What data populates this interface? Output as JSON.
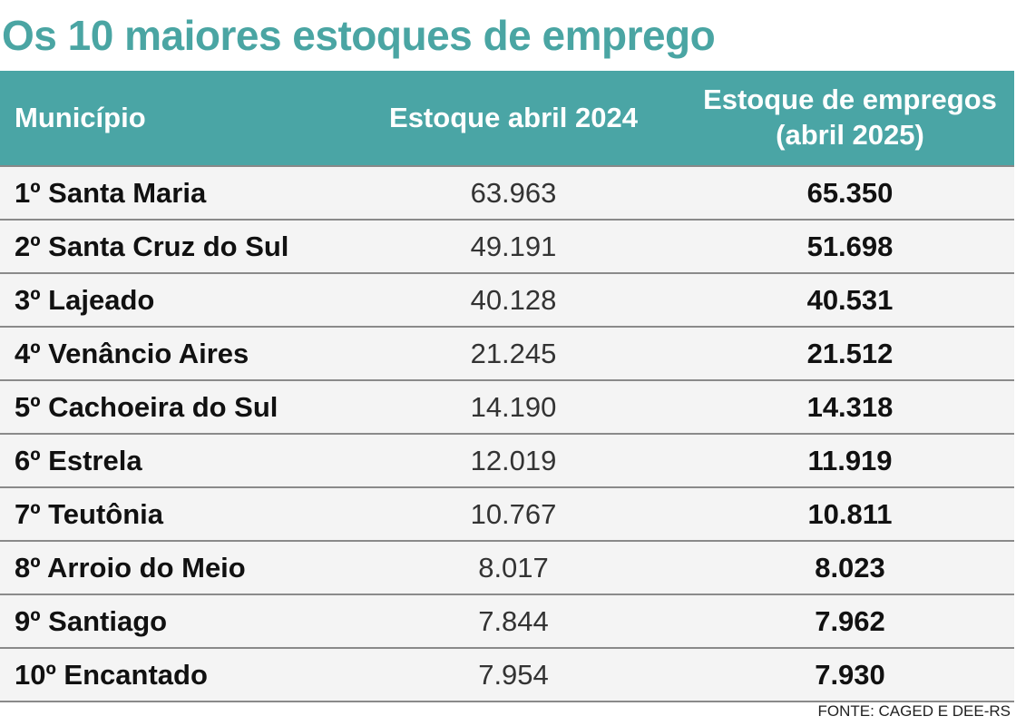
{
  "chart_data": {
    "type": "table",
    "title": "Os 10 maiores estoques de emprego",
    "columns": [
      "Município",
      "Estoque abril 2024",
      "Estoque de empregos (abril 2025)"
    ],
    "rows": [
      [
        "1º Santa Maria",
        "63.963",
        "65.350"
      ],
      [
        "2º Santa Cruz do Sul",
        "49.191",
        "51.698"
      ],
      [
        "3º Lajeado",
        "40.128",
        "40.531"
      ],
      [
        "4º Venâncio Aires",
        "21.245",
        "21.512"
      ],
      [
        "5º Cachoeira do Sul",
        "14.190",
        "14.318"
      ],
      [
        "6º Estrela",
        "12.019",
        "11.919"
      ],
      [
        "7º Teutônia",
        "10.767",
        "10.811"
      ],
      [
        "8º Arroio do Meio",
        "8.017",
        "8.023"
      ],
      [
        "9º Santiago",
        "7.844",
        "7.962"
      ],
      [
        "10º Encantado",
        "7.954",
        "7.930"
      ]
    ],
    "source": "FONTE: CAGED E DEE-RS"
  },
  "colors": {
    "accent": "#4aa5a5",
    "row_bg": "#f4f4f4"
  }
}
